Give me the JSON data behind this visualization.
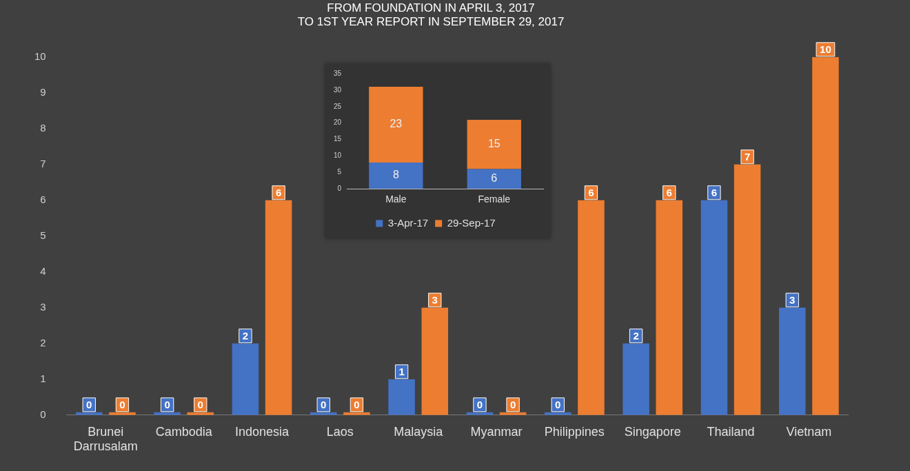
{
  "chart_data": [
    {
      "type": "bar",
      "title": "FROM FOUNDATION IN APRIL 3, 2017\nTO 1ST YEAR REPORT IN SEPTEMBER 29, 2017",
      "categories": [
        "Brunei Darrusalam",
        "Cambodia",
        "Indonesia",
        "Laos",
        "Malaysia",
        "Myanmar",
        "Philippines",
        "Singapore",
        "Thailand",
        "Vietnam"
      ],
      "series": [
        {
          "color": "#4472c4",
          "values": [
            0,
            0,
            2,
            0,
            1,
            0,
            0,
            2,
            6,
            3
          ]
        },
        {
          "color": "#ed7d31",
          "values": [
            0,
            0,
            6,
            0,
            3,
            0,
            6,
            6,
            7,
            10
          ]
        }
      ],
      "ylim": [
        0,
        10
      ],
      "yticks": [
        0,
        1,
        2,
        3,
        4,
        5,
        6,
        7,
        8,
        9,
        10
      ],
      "data_labels": true
    },
    {
      "type": "bar",
      "stacked": true,
      "categories": [
        "Male",
        "Female"
      ],
      "series": [
        {
          "name": "3-Apr-17",
          "color": "#4472c4",
          "values": [
            8,
            6
          ]
        },
        {
          "name": "29-Sep-17",
          "color": "#ed7d31",
          "values": [
            23,
            15
          ]
        }
      ],
      "ylim": [
        0,
        35
      ],
      "yticks": [
        0,
        5,
        10,
        15,
        20,
        25,
        30,
        35
      ],
      "data_labels": true,
      "legend": "bottom"
    }
  ]
}
